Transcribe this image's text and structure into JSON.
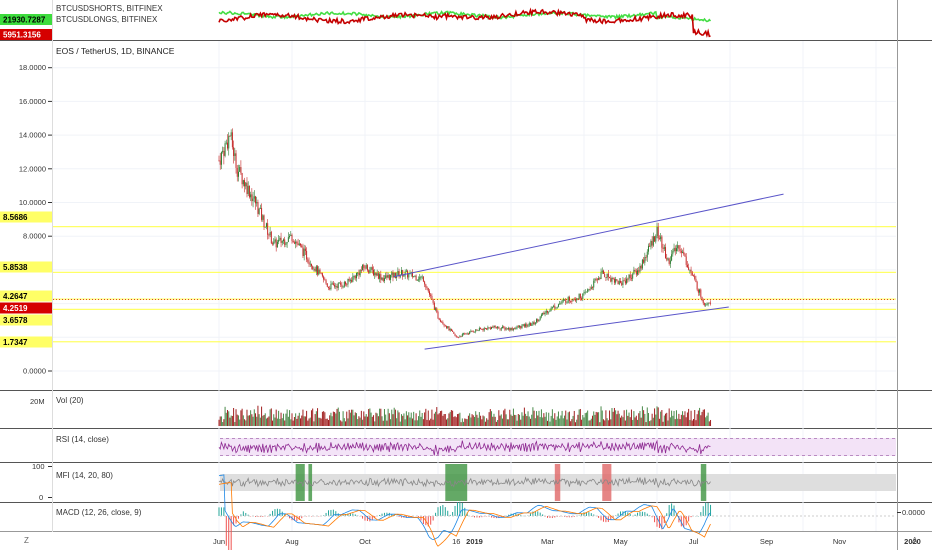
{
  "colors": {
    "up": "#2e7d32",
    "down": "#c62828",
    "volume_up": "#4a8a4a",
    "volume_down": "#a12020",
    "hline": "#ffff66",
    "trendline": "#5a55c9",
    "shorts_line": "#44dd44",
    "longs_line": "#c40000",
    "rsi": "#8e2a92",
    "rsi_band": "#f3e3f7",
    "mfi": "#888888",
    "mfi_band": "#dedede",
    "mfi_oversold": "#3d9440",
    "mfi_overbought": "#e06666",
    "macd": "#1e88e5",
    "signal": "#ff7a00",
    "grid": "#f0f3f8"
  },
  "top_pane": {
    "legend": [
      "BTCUSDSHORTS, BITFINEX",
      "BTCUSDLONGS, BITFINEX"
    ],
    "price_tags": [
      {
        "text": "21930.7287",
        "bg": "#3ddc3d",
        "fg": "#000000"
      },
      {
        "text": "5951.3156",
        "bg": "#d50000",
        "fg": "#ffffff"
      }
    ]
  },
  "main_pane": {
    "title": "EOS / TetherUS, 1D, BINANCE",
    "axis_ticks": [
      "18.0000",
      "16.0000",
      "14.0000",
      "12.0000",
      "10.0000",
      "8.0000",
      "0.0000"
    ],
    "level_tags": [
      {
        "text": "8.5686",
        "bg": "#ffff66",
        "fg": "#000000"
      },
      {
        "text": "5.8538",
        "bg": "#ffff66",
        "fg": "#000000"
      },
      {
        "text": "4.2647",
        "bg": "#ffff66",
        "fg": "#000000"
      },
      {
        "text": "4.2519",
        "bg": "#d50000",
        "fg": "#ffffff"
      },
      {
        "text": "3.6578",
        "bg": "#ffff66",
        "fg": "#000000"
      },
      {
        "text": "1.7347",
        "bg": "#ffff66",
        "fg": "#000000"
      }
    ]
  },
  "indicators": {
    "volume": {
      "label": "Vol (20)",
      "axis_tick": "20M"
    },
    "rsi": {
      "label": "RSI (14, close)"
    },
    "mfi": {
      "label": "MFI (14, 20, 80)",
      "axis_ticks": [
        "100",
        "0"
      ]
    },
    "macd": {
      "label": "MACD (12, 26, close, 9)",
      "axis_tick": "0.0000"
    }
  },
  "time_axis": {
    "labels": [
      "Jun",
      "Aug",
      "Oct",
      "16",
      "2019",
      "Mar",
      "May",
      "Jul",
      "Sep",
      "Nov",
      "2020"
    ]
  },
  "corner_buttons": {
    "left": "Z",
    "right": "A"
  },
  "chart_data": {
    "type": "candlestick",
    "title": "EOS / TetherUS, 1D, BINANCE",
    "x": [
      "2018-06",
      "2018-08",
      "2018-10",
      "2018-12",
      "2019-01",
      "2019-03",
      "2019-05",
      "2019-07",
      "2019-09",
      "2019-11",
      "2020-01"
    ],
    "y_approx_close": [
      12.5,
      6.0,
      5.5,
      2.0,
      2.5,
      3.9,
      6.0,
      4.2,
      null,
      null,
      null
    ],
    "ylim": [
      -0.5,
      18.0
    ],
    "horizontal_levels": [
      8.5686,
      5.8538,
      4.2647,
      3.6578,
      1.7347
    ],
    "last_price": 4.2519,
    "trendlines": [
      {
        "from": [
          "2018-10-25",
          5.6
        ],
        "to": [
          "2019-09-15",
          10.5
        ]
      },
      {
        "from": [
          "2018-11-20",
          1.3
        ],
        "to": [
          "2019-07-30",
          3.8
        ]
      }
    ],
    "series": [
      {
        "name": "BTCUSDSHORTS, BITFINEX",
        "last": 21930.7287
      },
      {
        "name": "BTCUSDLONGS, BITFINEX",
        "last": 5951.3156
      }
    ]
  }
}
